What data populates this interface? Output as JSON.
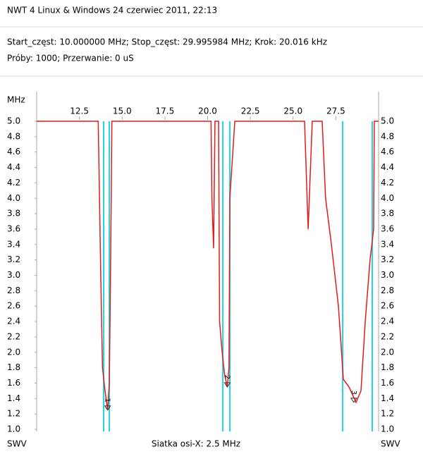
{
  "header": {
    "title": "NWT 4 Linux & Windows  24 czerwiec 2011, 22:13",
    "line1": "Start_częst: 10.000000 MHz; Stop_częst: 29.995984 MHz; Krok: 20.016 kHz",
    "line2": "Próby: 1000; Przerwanie:    0 uS"
  },
  "chart_data": {
    "type": "line",
    "xunit": "MHz",
    "ylabel": "SWV",
    "footer": "Siatka osi-X: 2.5 MHz",
    "xlim": [
      10,
      30
    ],
    "ylim": [
      1.0,
      5.0
    ],
    "xticks": [
      12.5,
      {
        "value": 15,
        "label": "15.0"
      },
      17.5,
      {
        "value": 20,
        "label": "20.0"
      },
      22.5,
      {
        "value": 25,
        "label": "25.0"
      },
      27.5
    ],
    "yticks": [
      {
        "value": 1,
        "label": "1.0"
      },
      1.2,
      1.4,
      1.6,
      1.8,
      {
        "value": 2,
        "label": "2.0"
      },
      2.2,
      2.4,
      2.6,
      2.8,
      {
        "value": 3,
        "label": "3.0"
      },
      3.2,
      3.4,
      3.6,
      3.8,
      {
        "value": 4,
        "label": "4.0"
      },
      4.2,
      4.4,
      4.6,
      4.8,
      {
        "value": 5,
        "label": "5.0"
      }
    ],
    "marker_lines": [
      13.92,
      14.25,
      20.89,
      21.3,
      27.9,
      29.63
    ],
    "marker_color": "#22d3e6",
    "markers": [
      {
        "label": "1",
        "x": 14.15,
        "y": 1.25
      },
      {
        "label": "2",
        "x": 21.15,
        "y": 1.55
      },
      {
        "label": "3",
        "x": 28.55,
        "y": 1.35
      }
    ],
    "x": [
      10,
      13.6,
      13.75,
      13.85,
      14.0,
      14.15,
      14.25,
      14.32,
      14.4,
      20.2,
      20.25,
      20.35,
      20.43,
      20.64,
      20.7,
      20.85,
      21.0,
      21.15,
      21.25,
      21.3,
      21.59,
      25.67,
      25.88,
      26.12,
      26.7,
      26.9,
      27.24,
      27.65,
      27.94,
      28.27,
      28.68,
      28.97,
      29.22,
      29.5,
      29.71,
      29.75,
      30
    ],
    "series": [
      {
        "color": "#e31b1b",
        "values": [
          5,
          5,
          3.0,
          1.8,
          1.5,
          1.25,
          1.6,
          3.0,
          5,
          5,
          4.0,
          3.35,
          5,
          5,
          2.4,
          2.0,
          1.7,
          1.55,
          1.8,
          4.0,
          5,
          5,
          3.6,
          5,
          5,
          4.0,
          3.4,
          2.6,
          1.65,
          1.55,
          1.35,
          1.5,
          2.4,
          3.2,
          3.6,
          5,
          5
        ]
      }
    ]
  }
}
